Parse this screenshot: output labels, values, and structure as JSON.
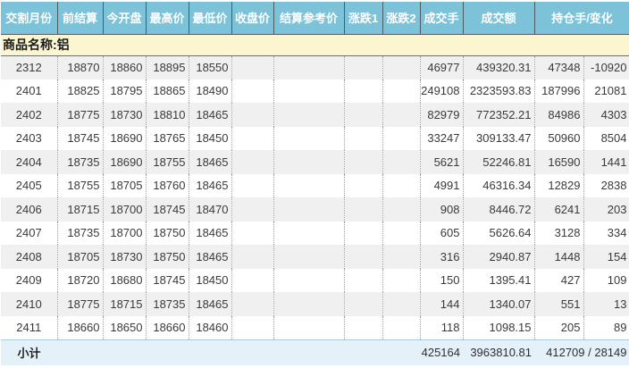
{
  "table": {
    "headers": [
      "交割月份",
      "前结算",
      "今开盘",
      "最高价",
      "最低价",
      "收盘价",
      "结算参考价",
      "涨跌1",
      "涨跌2",
      "成交手",
      "成交额",
      "持仓手/变化"
    ],
    "product_label": "商品名称:铝",
    "column_keys": [
      "month",
      "prev-settle",
      "open",
      "high",
      "low",
      "close",
      "settle-ref",
      "change1",
      "change2",
      "volume",
      "turnover",
      "open-interest",
      "oi-change"
    ],
    "rows": [
      [
        "2312",
        "18870",
        "18860",
        "18895",
        "18550",
        "",
        "",
        "",
        "",
        "46977",
        "439320.31",
        "47348",
        "-10920"
      ],
      [
        "2401",
        "18825",
        "18795",
        "18865",
        "18490",
        "",
        "",
        "",
        "",
        "249108",
        "2323593.83",
        "187996",
        "21081"
      ],
      [
        "2402",
        "18775",
        "18730",
        "18810",
        "18465",
        "",
        "",
        "",
        "",
        "82979",
        "772352.21",
        "84986",
        "4303"
      ],
      [
        "2403",
        "18745",
        "18690",
        "18765",
        "18450",
        "",
        "",
        "",
        "",
        "33247",
        "309133.47",
        "50960",
        "8504"
      ],
      [
        "2404",
        "18735",
        "18690",
        "18755",
        "18465",
        "",
        "",
        "",
        "",
        "5621",
        "52246.81",
        "16590",
        "1441"
      ],
      [
        "2405",
        "18755",
        "18705",
        "18760",
        "18465",
        "",
        "",
        "",
        "",
        "4991",
        "46316.34",
        "12829",
        "2838"
      ],
      [
        "2406",
        "18715",
        "18700",
        "18745",
        "18470",
        "",
        "",
        "",
        "",
        "908",
        "8446.72",
        "6241",
        "203"
      ],
      [
        "2407",
        "18735",
        "18700",
        "18750",
        "18465",
        "",
        "",
        "",
        "",
        "605",
        "5626.64",
        "3128",
        "334"
      ],
      [
        "2408",
        "18705",
        "18730",
        "18750",
        "18465",
        "",
        "",
        "",
        "",
        "316",
        "2940.87",
        "1448",
        "154"
      ],
      [
        "2409",
        "18720",
        "18680",
        "18745",
        "18450",
        "",
        "",
        "",
        "",
        "150",
        "1395.41",
        "427",
        "109"
      ],
      [
        "2410",
        "18775",
        "18715",
        "18735",
        "18465",
        "",
        "",
        "",
        "",
        "144",
        "1340.07",
        "551",
        "13"
      ],
      [
        "2411",
        "18660",
        "18650",
        "18660",
        "18460",
        "",
        "",
        "",
        "",
        "118",
        "1098.15",
        "205",
        "89"
      ]
    ],
    "subtotal": {
      "label": "小计",
      "volume": "425164",
      "turnover": "3963810.81",
      "oi_combined": "412709 / 28149"
    }
  },
  "colors": {
    "header_bg": "#7cc2d8",
    "header_text": "#ffffff",
    "product_row_bg": "#fcf6d0",
    "alt_row_bg": "#f0f0f0",
    "subtotal_bg": "#e4f1f8",
    "data_text": "#3a3a3a"
  }
}
